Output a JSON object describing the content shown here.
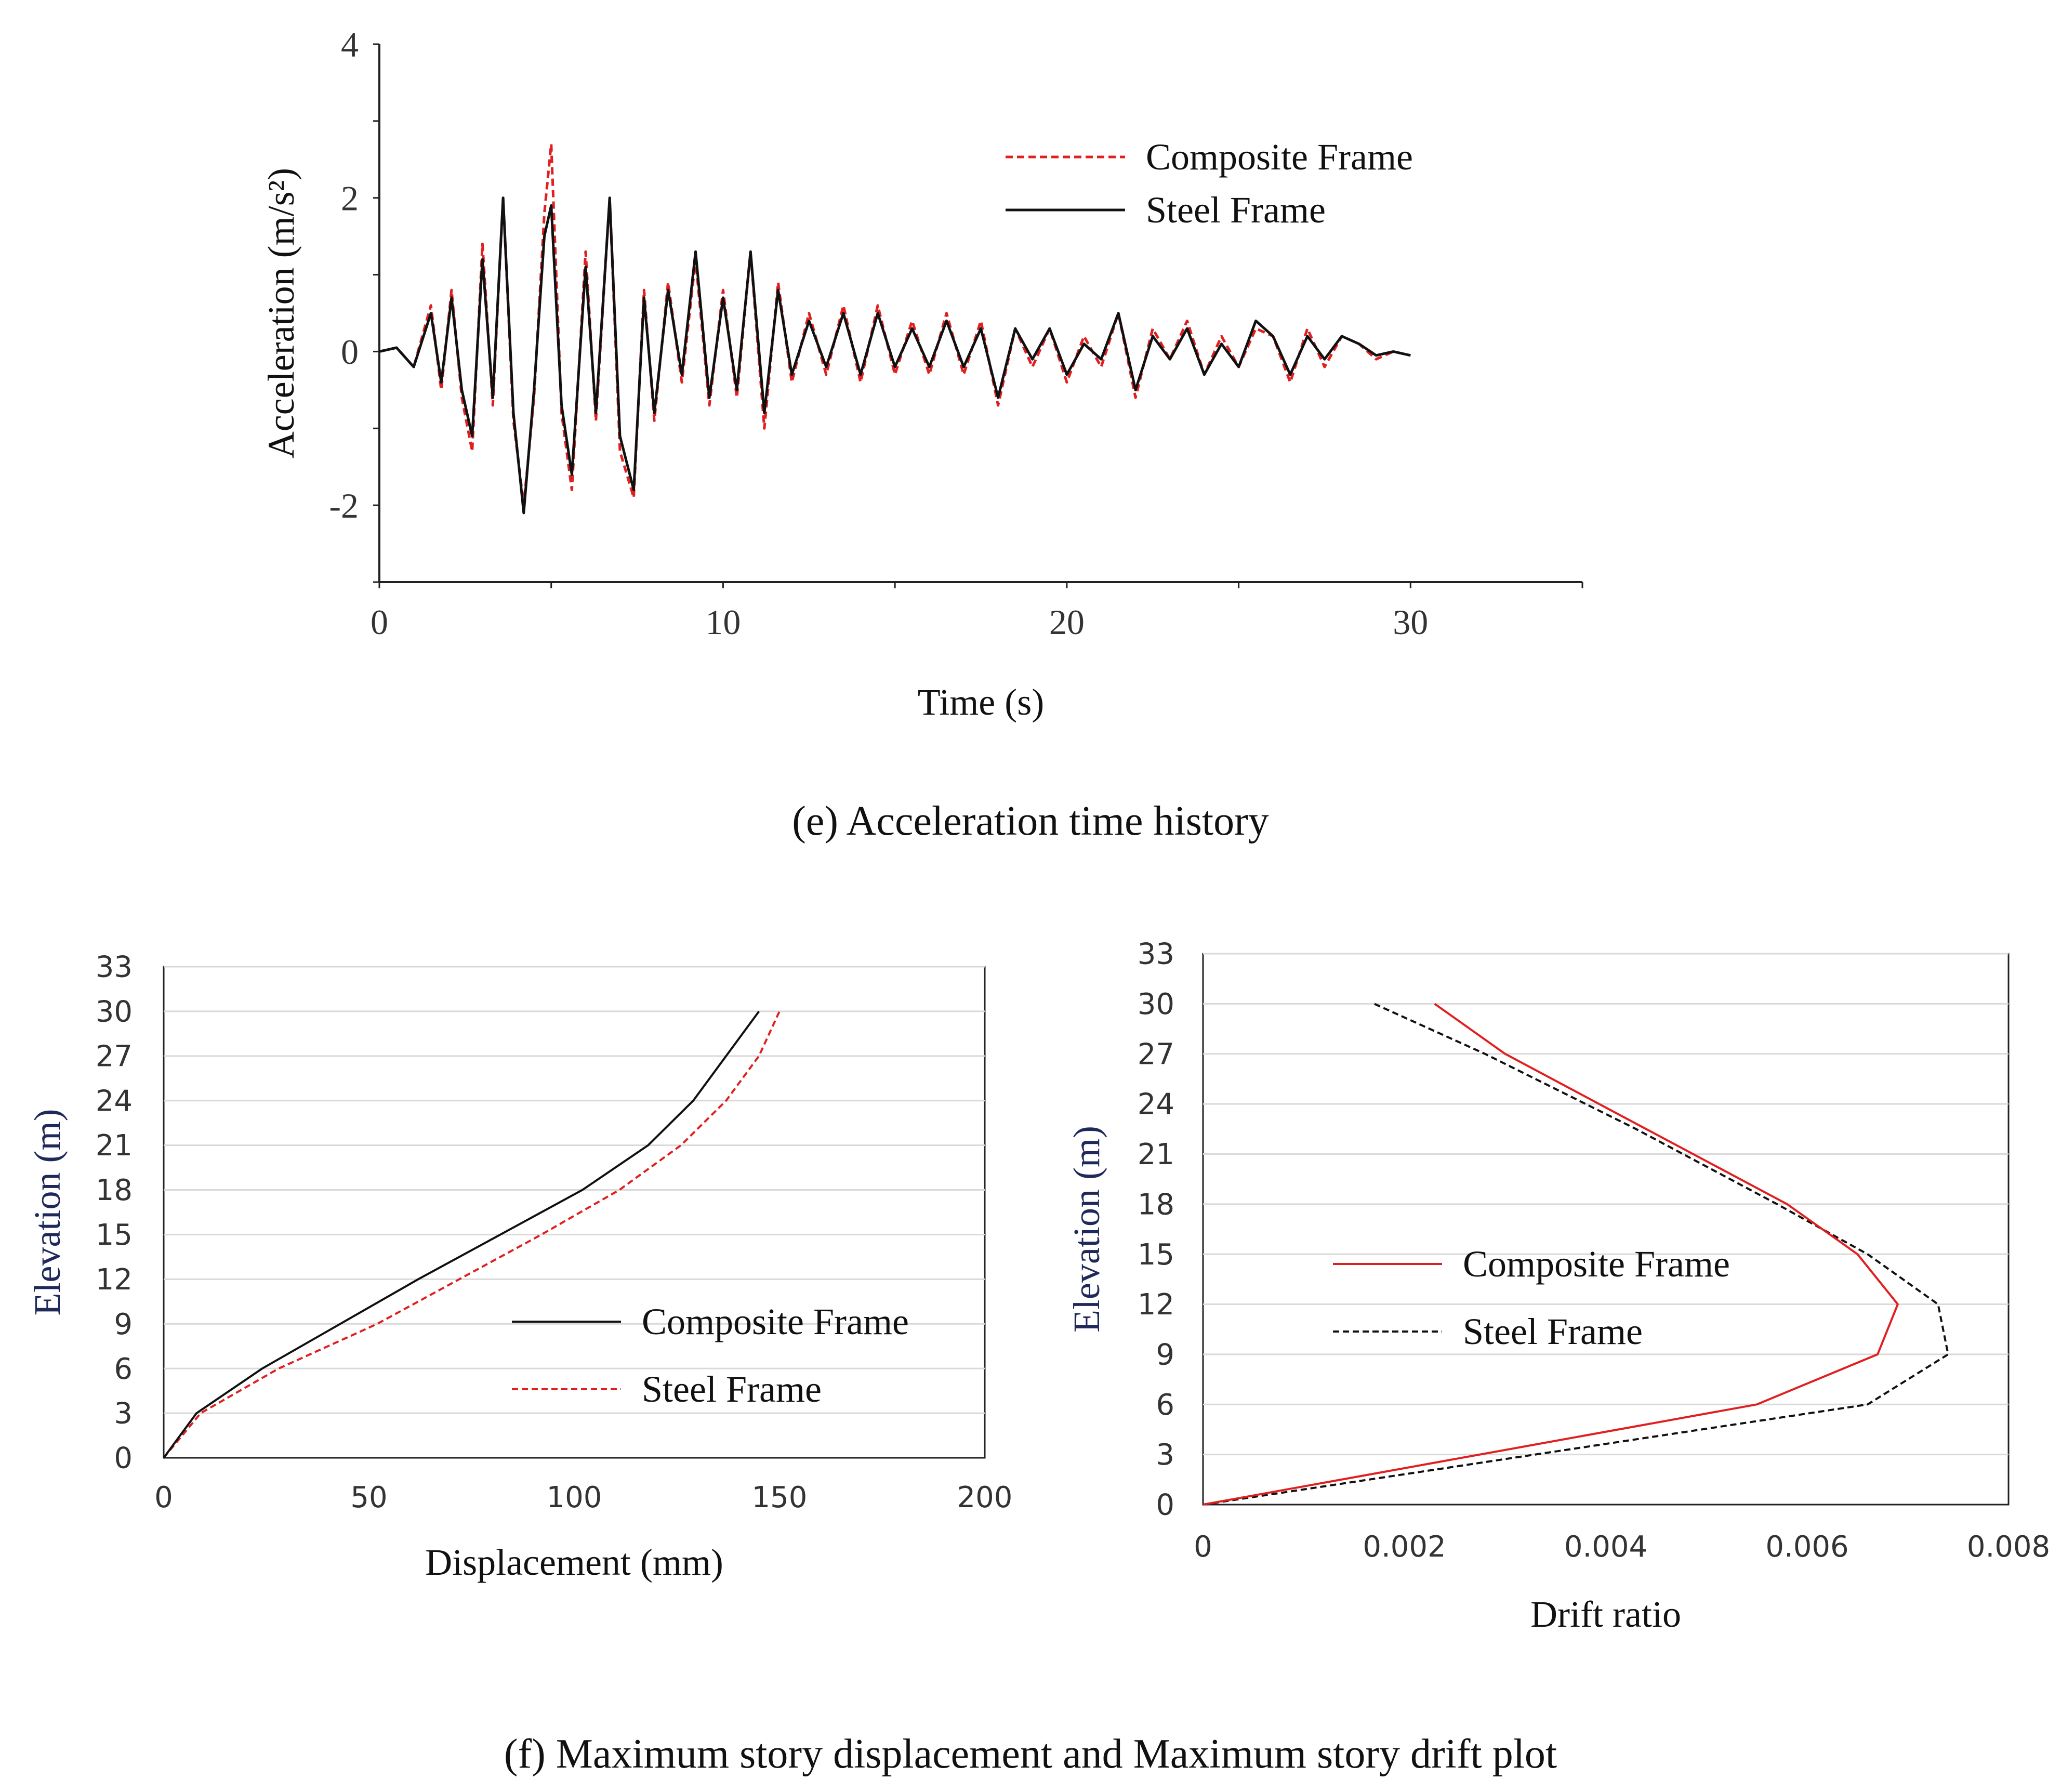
{
  "captions": {
    "e": "(e) Acceleration time history",
    "f": "(f) Maximum story displacement and Maximum story drift plot"
  },
  "colors": {
    "composite": "#e02020",
    "steel": "#111111",
    "grid": "#d9d9d9",
    "axis": "#222222"
  },
  "chart_data": [
    {
      "id": "acceleration",
      "type": "line",
      "title": "",
      "xlabel": "Time (s)",
      "ylabel": "Acceleration (m/s²)",
      "xlim": [
        0,
        35
      ],
      "ylim": [
        -3,
        4
      ],
      "xticks": [
        0,
        10,
        20,
        30
      ],
      "yticks": [
        -2,
        0,
        2,
        4
      ],
      "xtick_labels": [
        "0",
        "10",
        "20",
        "30"
      ],
      "ytick_labels": [
        "-2",
        "0",
        "2",
        "4"
      ],
      "legend": [
        "Composite Frame",
        "Steel Frame"
      ],
      "legend_position": "top-right",
      "series": [
        {
          "name": "Composite Frame",
          "style": "dashed",
          "x": [
            0,
            0.5,
            1,
            1.5,
            1.8,
            2.1,
            2.4,
            2.7,
            3.0,
            3.3,
            3.6,
            3.9,
            4.2,
            4.5,
            4.8,
            5.0,
            5.3,
            5.6,
            6.0,
            6.3,
            6.7,
            7.0,
            7.4,
            7.7,
            8.0,
            8.4,
            8.8,
            9.2,
            9.6,
            10.0,
            10.4,
            10.8,
            11.2,
            11.6,
            12.0,
            12.5,
            13.0,
            13.5,
            14.0,
            14.5,
            15.0,
            15.5,
            16.0,
            16.5,
            17.0,
            17.5,
            18.0,
            18.5,
            19.0,
            19.5,
            20.0,
            20.5,
            21.0,
            21.5,
            22.0,
            22.5,
            23.0,
            23.5,
            24.0,
            24.5,
            25.0,
            25.5,
            26.0,
            26.5,
            27.0,
            27.5,
            28.0,
            28.5,
            29.0,
            29.5,
            30.0
          ],
          "values": [
            0,
            0.05,
            -0.2,
            0.6,
            -0.5,
            0.8,
            -0.6,
            -1.3,
            1.4,
            -0.7,
            2.0,
            -0.9,
            -2.0,
            -0.6,
            1.8,
            2.7,
            -0.8,
            -1.8,
            1.3,
            -0.9,
            2.0,
            -1.3,
            -1.9,
            0.8,
            -0.9,
            0.9,
            -0.4,
            1.2,
            -0.7,
            0.8,
            -0.6,
            1.3,
            -1.0,
            0.9,
            -0.4,
            0.5,
            -0.3,
            0.6,
            -0.4,
            0.6,
            -0.3,
            0.4,
            -0.3,
            0.5,
            -0.3,
            0.4,
            -0.7,
            0.3,
            -0.2,
            0.3,
            -0.4,
            0.2,
            -0.2,
            0.5,
            -0.6,
            0.3,
            -0.1,
            0.4,
            -0.3,
            0.2,
            -0.2,
            0.3,
            0.2,
            -0.4,
            0.3,
            -0.2,
            0.2,
            0.1,
            -0.1,
            0.0,
            -0.05
          ]
        },
        {
          "name": "Steel Frame",
          "style": "solid",
          "x": [
            0,
            0.5,
            1,
            1.5,
            1.8,
            2.1,
            2.4,
            2.7,
            3.0,
            3.3,
            3.6,
            3.9,
            4.2,
            4.5,
            4.8,
            5.0,
            5.3,
            5.6,
            6.0,
            6.3,
            6.7,
            7.0,
            7.4,
            7.7,
            8.0,
            8.4,
            8.8,
            9.2,
            9.6,
            10.0,
            10.4,
            10.8,
            11.2,
            11.6,
            12.0,
            12.5,
            13.0,
            13.5,
            14.0,
            14.5,
            15.0,
            15.5,
            16.0,
            16.5,
            17.0,
            17.5,
            18.0,
            18.5,
            19.0,
            19.5,
            20.0,
            20.5,
            21.0,
            21.5,
            22.0,
            22.5,
            23.0,
            23.5,
            24.0,
            24.5,
            25.0,
            25.5,
            26.0,
            26.5,
            27.0,
            27.5,
            28.0,
            28.5,
            29.0,
            29.5,
            30.0
          ],
          "values": [
            0,
            0.05,
            -0.2,
            0.5,
            -0.4,
            0.7,
            -0.5,
            -1.1,
            1.2,
            -0.6,
            2.0,
            -0.8,
            -2.1,
            -0.5,
            1.5,
            1.9,
            -0.7,
            -1.6,
            1.1,
            -0.8,
            2.0,
            -1.1,
            -1.8,
            0.7,
            -0.8,
            0.8,
            -0.3,
            1.3,
            -0.6,
            0.7,
            -0.5,
            1.3,
            -0.8,
            0.8,
            -0.3,
            0.4,
            -0.2,
            0.5,
            -0.3,
            0.5,
            -0.2,
            0.3,
            -0.2,
            0.4,
            -0.2,
            0.3,
            -0.6,
            0.3,
            -0.1,
            0.3,
            -0.3,
            0.1,
            -0.1,
            0.5,
            -0.5,
            0.2,
            -0.1,
            0.3,
            -0.3,
            0.1,
            -0.2,
            0.4,
            0.2,
            -0.3,
            0.2,
            -0.1,
            0.2,
            0.1,
            -0.05,
            0.0,
            -0.05
          ]
        }
      ]
    },
    {
      "id": "displacement",
      "type": "line",
      "title": "",
      "xlabel": "Displacement (mm)",
      "ylabel": "Elevation (m)",
      "xlim": [
        0,
        200
      ],
      "ylim": [
        0,
        33
      ],
      "xticks": [
        0,
        50,
        100,
        150,
        200
      ],
      "yticks": [
        0,
        3,
        6,
        9,
        12,
        15,
        18,
        21,
        24,
        27,
        30,
        33
      ],
      "xtick_labels": [
        "0",
        "50",
        "100",
        "150",
        "200"
      ],
      "ytick_labels": [
        "0",
        "3",
        "6",
        "9",
        "12",
        "15",
        "18",
        "21",
        "24",
        "27",
        "30",
        "33"
      ],
      "grid": true,
      "legend": [
        "Composite Frame",
        "Steel Frame"
      ],
      "legend_position": "bottom-right",
      "series": [
        {
          "name": "Composite Frame",
          "style": "solid",
          "x": [
            0,
            8,
            24,
            43,
            62,
            82,
            102,
            118,
            129,
            137,
            145
          ],
          "y": [
            0,
            3,
            6,
            9,
            12,
            15,
            18,
            21,
            24,
            27,
            30
          ]
        },
        {
          "name": "Steel Frame",
          "style": "dashed",
          "x": [
            0,
            9,
            28,
            52,
            72,
            92,
            111,
            126,
            137,
            145,
            150
          ],
          "y": [
            0,
            3,
            6,
            9,
            12,
            15,
            18,
            21,
            24,
            27,
            30
          ]
        }
      ]
    },
    {
      "id": "drift",
      "type": "line",
      "title": "",
      "xlabel": "Drift ratio",
      "ylabel": "Elevation (m)",
      "xlim": [
        0,
        0.008
      ],
      "ylim": [
        0,
        33
      ],
      "xticks": [
        0,
        0.002,
        0.004,
        0.006,
        0.008
      ],
      "yticks": [
        0,
        3,
        6,
        9,
        12,
        15,
        18,
        21,
        24,
        27,
        30,
        33
      ],
      "xtick_labels": [
        "0",
        "0.002",
        "0.004",
        "0.006",
        "0.008"
      ],
      "ytick_labels": [
        "0",
        "3",
        "6",
        "9",
        "12",
        "15",
        "18",
        "21",
        "24",
        "27",
        "30",
        "33"
      ],
      "grid": true,
      "legend": [
        "Composite Frame",
        "Steel Frame"
      ],
      "legend_position": "center-left",
      "series": [
        {
          "name": "Composite Frame",
          "style": "solid",
          "x": [
            0,
            0.0055,
            0.0067,
            0.0069,
            0.0065,
            0.0058,
            0.0044,
            0.003,
            0.0023
          ],
          "y": [
            0,
            6,
            9,
            12,
            15,
            18,
            22.5,
            27,
            30
          ]
        },
        {
          "name": "Steel Frame",
          "style": "dashed",
          "x": [
            0,
            0.0066,
            0.0074,
            0.0073,
            0.0066,
            0.0057,
            0.0043,
            0.0028,
            0.0017
          ],
          "y": [
            0,
            6,
            9,
            12,
            15,
            18,
            22.5,
            27,
            30
          ]
        }
      ]
    }
  ]
}
